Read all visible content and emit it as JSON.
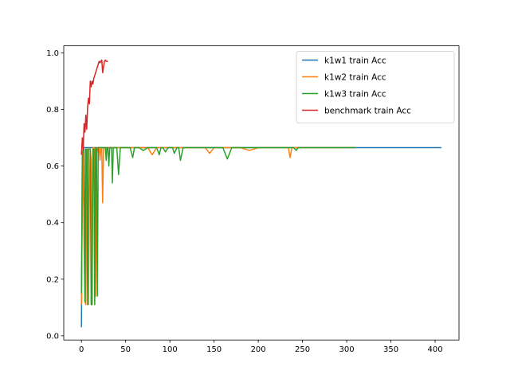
{
  "chart_data": {
    "type": "line",
    "title": "",
    "xlabel": "",
    "ylabel": "",
    "xlim": [
      -20,
      427
    ],
    "ylim": [
      -0.015,
      1.025
    ],
    "xticks": [
      0,
      50,
      100,
      150,
      200,
      250,
      300,
      350,
      400
    ],
    "yticks": [
      0.0,
      0.2,
      0.4,
      0.6,
      0.8,
      1.0
    ],
    "xtick_labels": [
      "0",
      "50",
      "100",
      "150",
      "200",
      "250",
      "300",
      "350",
      "400"
    ],
    "ytick_labels": [
      "0.0",
      "0.2",
      "0.4",
      "0.6",
      "0.8",
      "1.0"
    ],
    "grid": false,
    "legend_position": "top-right",
    "series": [
      {
        "name": "k1w1 train Acc",
        "color": "#1f77b4",
        "x": [
          0,
          1,
          2,
          3,
          4,
          5,
          6,
          8,
          10,
          15,
          20,
          30,
          50,
          100,
          150,
          200,
          250,
          300,
          350,
          407
        ],
        "y": [
          0.03,
          0.62,
          0.66,
          0.665,
          0.665,
          0.665,
          0.665,
          0.665,
          0.665,
          0.665,
          0.665,
          0.665,
          0.665,
          0.665,
          0.665,
          0.665,
          0.665,
          0.665,
          0.665,
          0.665
        ]
      },
      {
        "name": "k1w2 train Acc",
        "color": "#ff7f0e",
        "x": [
          0,
          1,
          2,
          3,
          4,
          5,
          6,
          7,
          8,
          9,
          10,
          11,
          12,
          13,
          14,
          15,
          16,
          17,
          18,
          19,
          20,
          21,
          22,
          23,
          24,
          25,
          26,
          27,
          28,
          29,
          30,
          32,
          34,
          36,
          38,
          40,
          45,
          50,
          60,
          70,
          75,
          80,
          85,
          90,
          95,
          100,
          110,
          120,
          130,
          140,
          145,
          150,
          160,
          170,
          180,
          190,
          200,
          210,
          220,
          230,
          234,
          236,
          238,
          240,
          250,
          260,
          270,
          280,
          290,
          300,
          310
        ],
        "y": [
          0.11,
          0.45,
          0.66,
          0.3,
          0.12,
          0.11,
          0.65,
          0.66,
          0.11,
          0.5,
          0.66,
          0.62,
          0.11,
          0.665,
          0.665,
          0.66,
          0.14,
          0.64,
          0.665,
          0.665,
          0.665,
          0.62,
          0.665,
          0.665,
          0.47,
          0.665,
          0.665,
          0.665,
          0.66,
          0.665,
          0.665,
          0.665,
          0.665,
          0.665,
          0.665,
          0.665,
          0.665,
          0.665,
          0.665,
          0.665,
          0.665,
          0.64,
          0.665,
          0.665,
          0.665,
          0.665,
          0.665,
          0.665,
          0.665,
          0.665,
          0.645,
          0.665,
          0.665,
          0.665,
          0.665,
          0.655,
          0.665,
          0.665,
          0.665,
          0.665,
          0.665,
          0.63,
          0.665,
          0.665,
          0.665,
          0.665,
          0.665,
          0.665,
          0.665,
          0.665,
          0.665
        ]
      },
      {
        "name": "k1w3 train Acc",
        "color": "#2ca02c",
        "x": [
          0,
          1,
          2,
          3,
          4,
          5,
          6,
          7,
          8,
          9,
          10,
          11,
          12,
          13,
          14,
          15,
          16,
          17,
          18,
          19,
          20,
          21,
          22,
          23,
          24,
          25,
          26,
          27,
          28,
          29,
          30,
          31,
          32,
          33,
          34,
          35,
          36,
          37,
          38,
          40,
          42,
          44,
          46,
          48,
          50,
          52,
          55,
          58,
          60,
          65,
          70,
          75,
          80,
          85,
          88,
          90,
          92,
          95,
          98,
          100,
          103,
          105,
          108,
          110,
          112,
          115,
          120,
          130,
          140,
          150,
          155,
          160,
          165,
          170,
          175,
          180,
          190,
          200,
          210,
          220,
          230,
          240,
          243,
          245,
          250,
          260,
          270,
          280,
          290,
          300,
          310
        ],
        "y": [
          0.15,
          0.64,
          0.66,
          0.66,
          0.12,
          0.66,
          0.66,
          0.11,
          0.66,
          0.66,
          0.66,
          0.11,
          0.11,
          0.66,
          0.66,
          0.11,
          0.66,
          0.665,
          0.14,
          0.665,
          0.665,
          0.665,
          0.665,
          0.665,
          0.665,
          0.665,
          0.665,
          0.665,
          0.62,
          0.665,
          0.665,
          0.6,
          0.665,
          0.665,
          0.665,
          0.54,
          0.665,
          0.665,
          0.665,
          0.665,
          0.57,
          0.665,
          0.665,
          0.665,
          0.665,
          0.665,
          0.665,
          0.63,
          0.665,
          0.665,
          0.655,
          0.665,
          0.665,
          0.665,
          0.64,
          0.665,
          0.665,
          0.65,
          0.665,
          0.665,
          0.665,
          0.645,
          0.665,
          0.665,
          0.62,
          0.665,
          0.665,
          0.665,
          0.665,
          0.665,
          0.665,
          0.665,
          0.625,
          0.665,
          0.665,
          0.665,
          0.665,
          0.665,
          0.665,
          0.665,
          0.665,
          0.665,
          0.655,
          0.665,
          0.665,
          0.665,
          0.665,
          0.665,
          0.665,
          0.665,
          0.665
        ]
      },
      {
        "name": "benchmark train Acc",
        "color": "#d62728",
        "x": [
          0,
          1,
          2,
          3,
          4,
          5,
          6,
          7,
          8,
          9,
          10,
          11,
          12,
          13,
          14,
          15,
          16,
          17,
          18,
          19,
          20,
          21,
          22,
          23,
          24,
          25,
          26,
          27,
          28,
          29,
          30
        ],
        "y": [
          0.64,
          0.7,
          0.66,
          0.75,
          0.72,
          0.78,
          0.73,
          0.81,
          0.84,
          0.82,
          0.9,
          0.88,
          0.9,
          0.89,
          0.91,
          0.92,
          0.93,
          0.94,
          0.95,
          0.96,
          0.97,
          0.965,
          0.97,
          0.975,
          0.93,
          0.95,
          0.97,
          0.975,
          0.97,
          0.97,
          0.97
        ]
      }
    ]
  }
}
